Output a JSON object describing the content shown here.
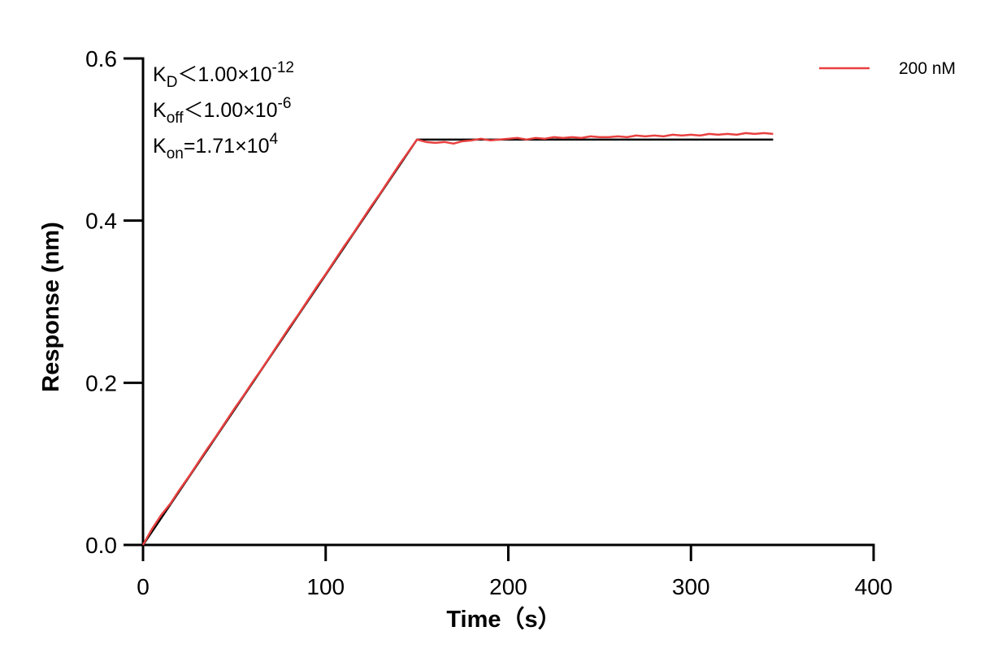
{
  "chart_data": {
    "type": "line",
    "xlabel": "Time（s）",
    "ylabel": "Response (nm)",
    "xlim": [
      0,
      400
    ],
    "xticks": [
      0,
      100,
      200,
      300,
      400
    ],
    "ylim": [
      0,
      0.6
    ],
    "yticks": [
      {
        "value": 0,
        "label": "0.0"
      },
      0.2,
      0.4,
      0.6
    ],
    "legend": "upper right",
    "annotations": [
      {
        "main": "K",
        "sub": "D",
        "rest": "＜1.00×10",
        "sup": "-12"
      },
      {
        "main": "K",
        "sub": "off",
        "rest": "＜1.00×10",
        "sup": "-6"
      },
      {
        "main": "K",
        "sub": "on",
        "rest": "=1.71×10",
        "sup": "4"
      }
    ],
    "series": [
      {
        "color": "#000000",
        "x": [
          0,
          150,
          345
        ],
        "values": [
          0,
          0.5,
          0.5
        ]
      },
      {
        "name": "200 nM",
        "color": "#e8403f",
        "x": [
          0,
          5,
          10,
          15,
          20,
          25,
          30,
          35,
          40,
          45,
          50,
          55,
          60,
          65,
          70,
          75,
          80,
          85,
          90,
          95,
          100,
          105,
          110,
          115,
          120,
          125,
          130,
          135,
          140,
          145,
          150,
          155,
          160,
          165,
          170,
          175,
          180,
          185,
          190,
          195,
          200,
          205,
          210,
          215,
          220,
          225,
          230,
          235,
          240,
          245,
          250,
          255,
          260,
          265,
          270,
          275,
          280,
          285,
          290,
          295,
          300,
          305,
          310,
          315,
          320,
          325,
          330,
          335,
          340,
          345
        ],
        "values": [
          0,
          0.02,
          0.037,
          0.051,
          0.068,
          0.084,
          0.101,
          0.118,
          0.134,
          0.151,
          0.168,
          0.184,
          0.201,
          0.217,
          0.234,
          0.251,
          0.268,
          0.284,
          0.301,
          0.318,
          0.334,
          0.351,
          0.368,
          0.384,
          0.401,
          0.418,
          0.434,
          0.451,
          0.468,
          0.484,
          0.5,
          0.497,
          0.496,
          0.497,
          0.495,
          0.498,
          0.499,
          0.501,
          0.499,
          0.5,
          0.501,
          0.502,
          0.5,
          0.502,
          0.501,
          0.503,
          0.502,
          0.503,
          0.502,
          0.504,
          0.503,
          0.503,
          0.504,
          0.503,
          0.505,
          0.504,
          0.505,
          0.504,
          0.506,
          0.505,
          0.506,
          0.505,
          0.507,
          0.506,
          0.507,
          0.506,
          0.508,
          0.507,
          0.508,
          0.507
        ]
      }
    ]
  }
}
